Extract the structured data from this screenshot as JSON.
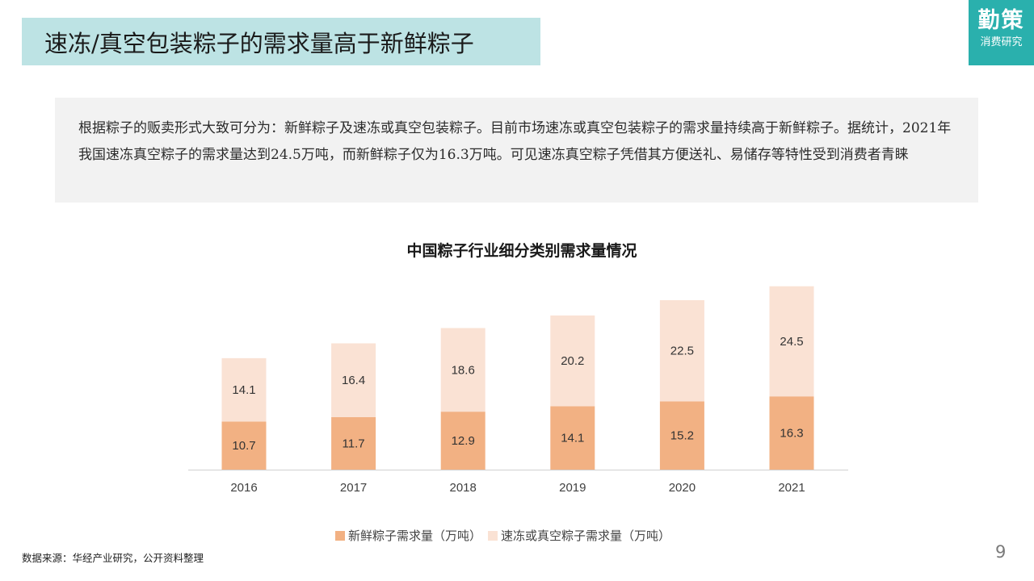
{
  "header": {
    "title": "速冻/真空包装粽子的需求量高于新鲜粽子"
  },
  "logo": {
    "main": "勤策",
    "sub": "消费研究"
  },
  "summary": {
    "text": "根据粽子的贩卖形式大致可分为：新鲜粽子及速冻或真空包装粽子。目前市场速冻或真空包装粽子的需求量持续高于新鲜粽子。据统计，2021年我国速冻真空粽子的需求量达到24.5万吨，而新鲜粽子仅为16.3万吨。可见速冻真空粽子凭借其方便送礼、易储存等特性受到消费者青睐"
  },
  "chart_data": {
    "type": "bar",
    "stacked": true,
    "title": "中国粽子行业细分类别需求量情况",
    "categories": [
      "2016",
      "2017",
      "2018",
      "2019",
      "2020",
      "2021"
    ],
    "series": [
      {
        "name": "新鲜粽子需求量（万吨）",
        "values": [
          10.7,
          11.7,
          12.9,
          14.1,
          15.2,
          16.3
        ],
        "color": "#f2b183"
      },
      {
        "name": "速冻或真空粽子需求量（万吨）",
        "values": [
          14.1,
          16.4,
          18.6,
          20.2,
          22.5,
          24.5
        ],
        "color": "#fae2d4"
      }
    ],
    "ylim": [
      0,
      41
    ],
    "grid": false,
    "legend_position": "bottom",
    "xlabel": "",
    "ylabel": ""
  },
  "footer": {
    "source": "数据来源：华经产业研究，公开资料整理",
    "page": "9"
  }
}
